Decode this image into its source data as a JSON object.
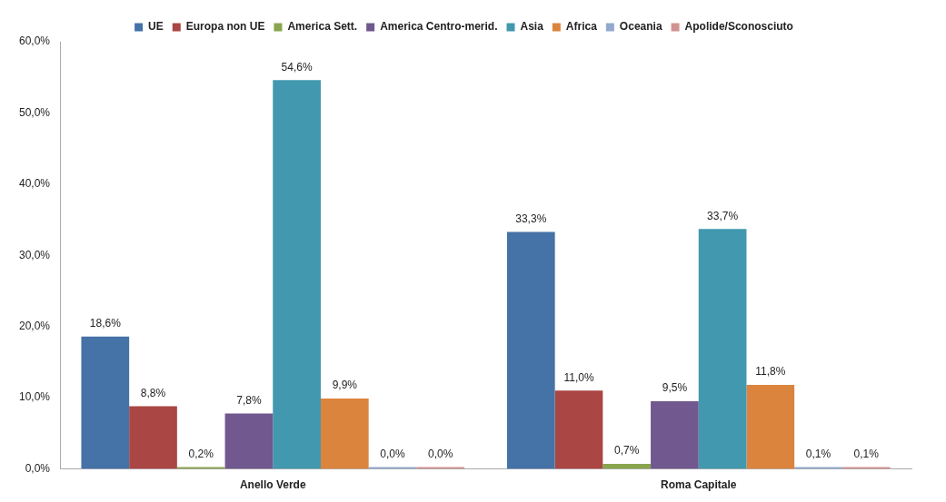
{
  "chart_data": {
    "type": "bar",
    "categories": [
      "Anello Verde",
      "Roma Capitale"
    ],
    "series": [
      {
        "name": "UE",
        "color": "#4572a7",
        "values": [
          18.6,
          33.3
        ],
        "value_labels": [
          "18,6%",
          "33,3%"
        ]
      },
      {
        "name": "Europa non UE",
        "color": "#aa4643",
        "values": [
          8.8,
          11.0
        ],
        "value_labels": [
          "8,8%",
          "11,0%"
        ]
      },
      {
        "name": "America Sett.",
        "color": "#89a54e",
        "values": [
          0.2,
          0.7
        ],
        "value_labels": [
          "0,2%",
          "0,7%"
        ]
      },
      {
        "name": "America Centro-merid.",
        "color": "#71588f",
        "values": [
          7.8,
          9.5
        ],
        "value_labels": [
          "7,8%",
          "9,5%"
        ]
      },
      {
        "name": "Asia",
        "color": "#4198af",
        "values": [
          54.6,
          33.7
        ],
        "value_labels": [
          "54,6%",
          "33,7%"
        ]
      },
      {
        "name": "Africa",
        "color": "#db843d",
        "values": [
          9.9,
          11.8
        ],
        "value_labels": [
          "9,9%",
          "11,8%"
        ]
      },
      {
        "name": "Oceania",
        "color": "#93a9cf",
        "values": [
          0.0,
          0.1
        ],
        "value_labels": [
          "0,0%",
          "0,1%"
        ]
      },
      {
        "name": "Apolide/Sconosciuto",
        "color": "#d19392",
        "values": [
          0.0,
          0.1
        ],
        "value_labels": [
          "0,0%",
          "0,1%"
        ]
      }
    ],
    "ylim": [
      0,
      60
    ],
    "yticks": [
      {
        "value": 0,
        "label": "0,0%"
      },
      {
        "value": 10,
        "label": "10,0%"
      },
      {
        "value": 20,
        "label": "20,0%"
      },
      {
        "value": 30,
        "label": "30,0%"
      },
      {
        "value": 40,
        "label": "40,0%"
      },
      {
        "value": 50,
        "label": "50,0%"
      },
      {
        "value": 60,
        "label": "60,0%"
      }
    ],
    "grid": false,
    "legend": "top"
  }
}
